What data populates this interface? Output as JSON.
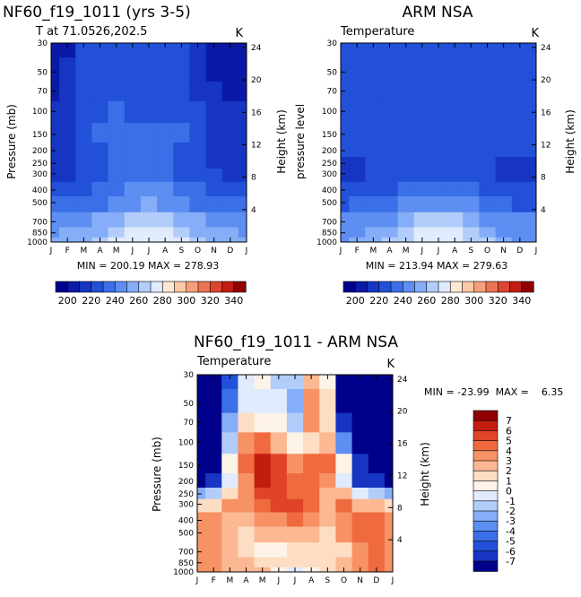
{
  "chart_data": [
    {
      "type": "heatmap",
      "title": "NF60_f19_1011 (yrs 3-5)",
      "subtitle_left": "T at 71.0526,202.5",
      "units": "K",
      "ylabel": "Pressure (mb)",
      "ylabel_right": "Height (km)",
      "x_ticks": [
        "J",
        "F",
        "M",
        "A",
        "M",
        "J",
        "J",
        "A",
        "S",
        "O",
        "N",
        "D",
        "J"
      ],
      "y_ticks": [
        "30",
        "50",
        "70",
        "100",
        "150",
        "200",
        "250",
        "300",
        "400",
        "500",
        "700",
        "850",
        "1000"
      ],
      "y_ticks_right": [
        "24",
        "20",
        "16",
        "12",
        "8",
        "4"
      ],
      "min_max_label": "MIN = 200.19  MAX = 278.93",
      "colorbar_labels": [
        "200",
        "220",
        "240",
        "260",
        "280",
        "300",
        "320",
        "340"
      ],
      "colorbar_range": [
        190,
        350
      ],
      "rows_pressure": [
        30,
        50,
        70,
        100,
        150,
        200,
        250,
        300,
        400,
        500,
        700,
        850,
        1000
      ],
      "values": [
        [
          203,
          209,
          221,
          226,
          227,
          225,
          223,
          224,
          226,
          215,
          207,
          205,
          203
        ],
        [
          205,
          210,
          222,
          227,
          228,
          226,
          224,
          225,
          227,
          216,
          209,
          206,
          205
        ],
        [
          207,
          212,
          223,
          228,
          229,
          227,
          225,
          226,
          228,
          219,
          211,
          208,
          207
        ],
        [
          210,
          214,
          224,
          229,
          231,
          229,
          227,
          228,
          229,
          222,
          214,
          211,
          210
        ],
        [
          213,
          216,
          225,
          230,
          233,
          232,
          230,
          231,
          231,
          226,
          218,
          214,
          213
        ],
        [
          214,
          216,
          223,
          228,
          232,
          232,
          231,
          231,
          229,
          224,
          216,
          214,
          214
        ],
        [
          215,
          217,
          222,
          226,
          230,
          231,
          231,
          230,
          227,
          224,
          218,
          216,
          215
        ],
        [
          218,
          219,
          223,
          226,
          230,
          233,
          234,
          232,
          228,
          226,
          221,
          219,
          218
        ],
        [
          225,
          226,
          228,
          231,
          236,
          240,
          242,
          240,
          235,
          231,
          228,
          226,
          225
        ],
        [
          232,
          233,
          235,
          238,
          244,
          249,
          251,
          249,
          243,
          239,
          235,
          233,
          232
        ],
        [
          243,
          244,
          246,
          250,
          256,
          261,
          264,
          262,
          256,
          250,
          246,
          244,
          243
        ],
        [
          249,
          250,
          253,
          258,
          265,
          271,
          274,
          272,
          265,
          258,
          252,
          250,
          249
        ],
        [
          252,
          253,
          256,
          262,
          270,
          276,
          278,
          277,
          270,
          262,
          256,
          253,
          252
        ]
      ]
    },
    {
      "type": "heatmap",
      "title": "ARM NSA",
      "subtitle_left": "Temperature",
      "units": "K",
      "ylabel": "pressure level",
      "ylabel_right": "Height (km)",
      "x_ticks": [
        "J",
        "F",
        "M",
        "A",
        "M",
        "J",
        "J",
        "A",
        "S",
        "O",
        "N",
        "D",
        "J"
      ],
      "y_ticks": [
        "30",
        "50",
        "70",
        "100",
        "150",
        "200",
        "250",
        "300",
        "400",
        "500",
        "700",
        "850",
        "1000"
      ],
      "y_ticks_right": [
        "24",
        "20",
        "16",
        "12",
        "8",
        "4"
      ],
      "min_max_label": "MIN = 213.94  MAX = 279.63",
      "colorbar_labels": [
        "200",
        "220",
        "240",
        "260",
        "280",
        "300",
        "320",
        "340"
      ],
      "colorbar_range": [
        190,
        350
      ],
      "rows_pressure": [
        30,
        50,
        70,
        100,
        150,
        200,
        250,
        300,
        400,
        500,
        700,
        850,
        1000
      ],
      "values": [
        [
          226,
          226,
          227,
          227,
          227,
          227,
          228,
          229,
          228,
          227,
          226,
          221,
          226
        ],
        [
          226,
          226,
          227,
          227,
          227,
          227,
          227,
          228,
          228,
          227,
          226,
          222,
          226
        ],
        [
          225,
          226,
          226,
          227,
          227,
          227,
          227,
          227,
          227,
          226,
          226,
          223,
          225
        ],
        [
          225,
          225,
          226,
          226,
          227,
          227,
          227,
          227,
          227,
          226,
          225,
          223,
          225
        ],
        [
          224,
          225,
          225,
          226,
          227,
          227,
          227,
          227,
          227,
          226,
          225,
          223,
          224
        ],
        [
          222,
          223,
          224,
          225,
          226,
          227,
          227,
          227,
          226,
          225,
          223,
          221,
          222
        ],
        [
          218,
          219,
          221,
          223,
          225,
          226,
          227,
          226,
          225,
          222,
          219,
          218,
          218
        ],
        [
          217,
          218,
          220,
          223,
          226,
          228,
          229,
          228,
          226,
          222,
          219,
          217,
          217
        ],
        [
          222,
          223,
          226,
          229,
          233,
          237,
          238,
          237,
          233,
          228,
          224,
          222,
          222
        ],
        [
          229,
          230,
          233,
          237,
          242,
          247,
          249,
          247,
          242,
          236,
          231,
          229,
          229
        ],
        [
          240,
          241,
          244,
          249,
          256,
          261,
          263,
          261,
          255,
          249,
          243,
          240,
          240
        ],
        [
          246,
          247,
          251,
          256,
          264,
          270,
          273,
          271,
          264,
          256,
          249,
          246,
          246
        ],
        [
          249,
          250,
          254,
          260,
          268,
          276,
          279,
          277,
          269,
          260,
          253,
          249,
          249
        ]
      ]
    },
    {
      "type": "heatmap",
      "title": "NF60_f19_1011 - ARM NSA",
      "subtitle_left": "Temperature",
      "units": "K",
      "ylabel": "Pressure (mb)",
      "ylabel_right": "Height (km)",
      "x_ticks": [
        "J",
        "F",
        "M",
        "A",
        "M",
        "J",
        "J",
        "A",
        "S",
        "O",
        "N",
        "D",
        "J"
      ],
      "y_ticks": [
        "30",
        "50",
        "70",
        "100",
        "150",
        "200",
        "250",
        "300",
        "400",
        "500",
        "700",
        "850",
        "1000"
      ],
      "y_ticks_right": [
        "24",
        "20",
        "16",
        "12",
        "8",
        "4"
      ],
      "min_max_label": "MIN = -23.99  MAX =    6.35",
      "colorbar_labels": [
        "7",
        "6",
        "5",
        "4",
        "3",
        "2",
        "1",
        "0",
        "-1",
        "-2",
        "-3",
        "-4",
        "-5",
        "-6",
        "-7"
      ],
      "colorbar_range": [
        -8,
        8
      ],
      "rows_pressure": [
        30,
        50,
        70,
        100,
        150,
        200,
        250,
        300,
        400,
        500,
        700,
        850,
        1000
      ],
      "values": [
        [
          -23,
          -17,
          -6,
          -1,
          0,
          -2,
          -2,
          2,
          0,
          -12,
          -19,
          -16,
          -23
        ],
        [
          -21,
          -16,
          -5,
          -1,
          -1,
          -1,
          -3,
          3,
          1,
          -11,
          -17,
          -16,
          -21
        ],
        [
          -18,
          -14,
          -3,
          1,
          0,
          0,
          -2,
          3,
          1,
          -7,
          -15,
          -15,
          -18
        ],
        [
          -15,
          -11,
          -2,
          3,
          4,
          2,
          0,
          1,
          2,
          -4,
          -11,
          -12,
          -15
        ],
        [
          -11,
          -9,
          0,
          4,
          6,
          5,
          3,
          4,
          4,
          0,
          -7,
          -9,
          -11
        ],
        [
          -8,
          -7,
          -1,
          3,
          6,
          5,
          4,
          4,
          3,
          -1,
          -7,
          -7,
          -8
        ],
        [
          -3,
          -2,
          1,
          3,
          5,
          5,
          4,
          4,
          2,
          2,
          -1,
          -2,
          -3
        ],
        [
          1,
          1,
          3,
          3,
          4,
          5,
          5,
          4,
          2,
          4,
          2,
          2,
          1
        ],
        [
          3,
          3,
          2,
          2,
          3,
          3,
          4,
          3,
          2,
          3,
          4,
          4,
          3
        ],
        [
          3,
          3,
          2,
          1,
          2,
          2,
          2,
          2,
          1,
          3,
          4,
          4,
          3
        ],
        [
          3,
          3,
          2,
          1,
          0,
          0,
          1,
          1,
          1,
          1,
          3,
          4,
          3
        ],
        [
          3,
          3,
          2,
          2,
          1,
          1,
          1,
          1,
          1,
          2,
          3,
          4,
          3
        ],
        [
          3,
          3,
          2,
          2,
          2,
          0,
          -1,
          0,
          1,
          2,
          3,
          4,
          3
        ]
      ]
    }
  ],
  "colors": {
    "temp_scale": [
      "#00008a",
      "#0a1aa6",
      "#1535c2",
      "#2250d8",
      "#3b6fe8",
      "#5d8ef2",
      "#86adf7",
      "#b3cdfb",
      "#e0ebfd",
      "#fde9d6",
      "#fbc8a7",
      "#f6a07a",
      "#ed7452",
      "#dc4630",
      "#c21d10",
      "#900000"
    ],
    "diff_scale_top_to_bottom": [
      "#900000",
      "#c21d10",
      "#e04328",
      "#f06a3f",
      "#f79264",
      "#fbb892",
      "#fdddc4",
      "#fdf3e7",
      "#e0ebfd",
      "#b3cdfb",
      "#86adf7",
      "#5d8ef2",
      "#3b6fe8",
      "#2250d8",
      "#1535c2",
      "#00008a"
    ]
  }
}
